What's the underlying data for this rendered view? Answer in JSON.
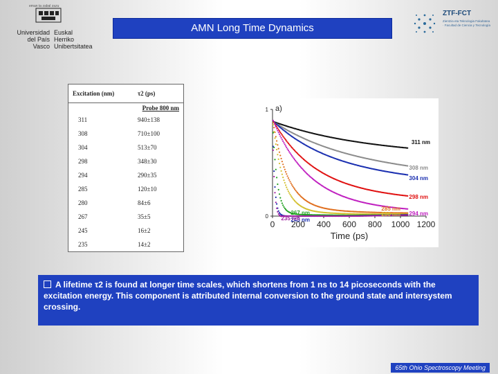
{
  "header": {
    "left_logo": {
      "tagline": "eman ta zabal zazu",
      "line1": [
        "Universidad",
        "del País Vasco"
      ],
      "line2": [
        "Euskal Herriko",
        "Unibertsitatea"
      ]
    },
    "title": "AMN Long Time Dynamics",
    "right_logo": {
      "name": "ZTF-FCT",
      "subtitle": "Zientzia eta Teknologia Fakultatea · Facultad de Ciencia y Tecnología"
    }
  },
  "table": {
    "col1_header": "Excitation (nm)",
    "col2_header": "τ2 (ps)",
    "probe_label": "Probe 800 nm",
    "rows": [
      {
        "excitation": "311",
        "tau": "940±138"
      },
      {
        "excitation": "308",
        "tau": "710±100"
      },
      {
        "excitation": "304",
        "tau": "513±70"
      },
      {
        "excitation": "298",
        "tau": "348±30"
      },
      {
        "excitation": "294",
        "tau": "290±35"
      },
      {
        "excitation": "285",
        "tau": "120±10"
      },
      {
        "excitation": "280",
        "tau": "84±6"
      },
      {
        "excitation": "267",
        "tau": "35±5"
      },
      {
        "excitation": "245",
        "tau": "16±2"
      },
      {
        "excitation": "235",
        "tau": "14±2"
      }
    ]
  },
  "chart_data": {
    "type": "scatter",
    "panel_label": "a)",
    "xlabel": "Time (ps)",
    "ylabel": "",
    "xlim": [
      0,
      1200
    ],
    "ylim": [
      0,
      1
    ],
    "x_ticks": [
      "0",
      "200",
      "400",
      "600",
      "800",
      "1000",
      "1200"
    ],
    "y_ticks": [
      "0",
      "1"
    ],
    "series": [
      {
        "name": "311 nm",
        "tau": 940,
        "floor": 0.5,
        "color": "#111111"
      },
      {
        "name": "308 nm",
        "tau": 710,
        "floor": 0.33,
        "color": "#8c8c8c"
      },
      {
        "name": "304 nm",
        "tau": 513,
        "floor": 0.3,
        "color": "#1a2fb0"
      },
      {
        "name": "298 nm",
        "tau": 348,
        "floor": 0.15,
        "color": "#e01010"
      },
      {
        "name": "294 nm",
        "tau": 290,
        "floor": 0.05,
        "color": "#c020c0"
      },
      {
        "name": "285 nm",
        "tau": 120,
        "floor": 0.04,
        "color": "#e07020"
      },
      {
        "name": "280 nm",
        "tau": 84,
        "floor": 0.03,
        "color": "#d4c030"
      },
      {
        "name": "267 nm",
        "tau": 35,
        "floor": 0.02,
        "color": "#20a020"
      },
      {
        "name": "245 nm",
        "tau": 16,
        "floor": 0.01,
        "color": "#1a2fb0"
      },
      {
        "name": "235 nm",
        "tau": 14,
        "floor": 0.0,
        "color": "#a020a0"
      }
    ]
  },
  "note": {
    "text": "A lifetime τ2 is found at longer time scales, which shortens from 1 ns to 14 picoseconds with the excitation energy. This component is attributed internal conversion to the ground state and intersystem crossing."
  },
  "footer": "65th Ohio Spectroscopy Meeting",
  "colors": {
    "accent": "#1f41c0"
  }
}
